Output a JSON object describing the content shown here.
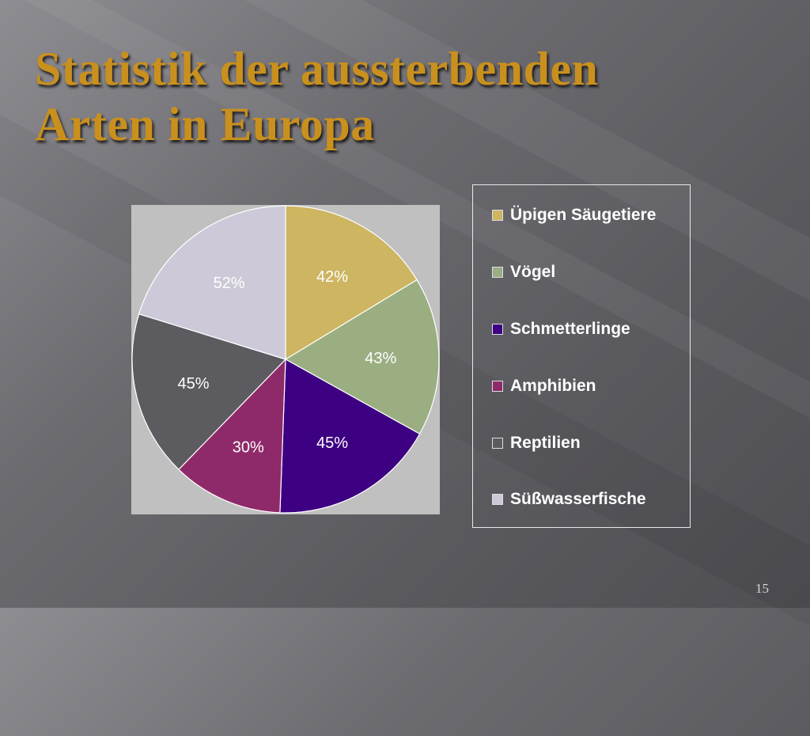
{
  "title": {
    "line1": "Statistik der aussterbenden",
    "line2": "Arten in Europa"
  },
  "page_number": "15",
  "chart_data": {
    "type": "pie",
    "categories": [
      "Üpigen Säugetiere",
      "Vögel",
      "Schmetterlinge",
      "Amphibien",
      "Reptilien",
      "Süßwasserfische"
    ],
    "values": [
      42,
      43,
      45,
      30,
      45,
      52
    ],
    "labels": [
      "42%",
      "43%",
      "45%",
      "30%",
      "45%",
      "52%"
    ],
    "colors": [
      "#cdb561",
      "#9aae82",
      "#3e0082",
      "#8f2a6a",
      "#5c5b60",
      "#cdc9d8"
    ],
    "legend_position": "right"
  },
  "legend": {
    "items": [
      {
        "label": "Üpigen Säugetiere",
        "color": "#cdb561"
      },
      {
        "label": "Vögel",
        "color": "#9aae82"
      },
      {
        "label": "Schmetterlinge",
        "color": "#3e0082"
      },
      {
        "label": "Amphibien",
        "color": "#8f2a6a"
      },
      {
        "label": "Reptilien",
        "color": "#5c5b60"
      },
      {
        "label": "Süßwasserfische",
        "color": "#cdc9d8"
      }
    ]
  }
}
